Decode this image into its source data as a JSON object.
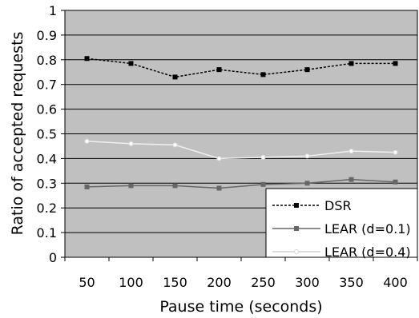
{
  "chart_data": {
    "type": "line",
    "title": "",
    "xlabel": "Pause time (seconds)",
    "ylabel": "Ratio of accepted requests",
    "x": [
      50,
      100,
      150,
      200,
      250,
      300,
      350,
      400
    ],
    "x_tick_labels": [
      "50",
      "100",
      "150",
      "200",
      "250",
      "300",
      "350",
      "400"
    ],
    "y_tick_labels": [
      "0",
      "0.1",
      "0.2",
      "0.3",
      "0.4",
      "0.5",
      "0.6",
      "0.7",
      "0.8",
      "0.9",
      "1"
    ],
    "ylim": [
      0,
      1
    ],
    "grid": "horizontal",
    "plot_background": "#C0C0C0",
    "legend_position": "bottom-right",
    "series": [
      {
        "name": "DSR",
        "values": [
          0.805,
          0.785,
          0.73,
          0.76,
          0.74,
          0.76,
          0.785,
          0.785
        ],
        "color": "#000000",
        "line_style": "dashed",
        "marker": "square-filled"
      },
      {
        "name": "LEAR (d=0.1)",
        "values": [
          0.285,
          0.29,
          0.29,
          0.28,
          0.295,
          0.3,
          0.315,
          0.305
        ],
        "color": "#666666",
        "line_style": "solid",
        "marker": "square-filled"
      },
      {
        "name": "LEAR (d=0.4)",
        "values": [
          0.47,
          0.46,
          0.455,
          0.4,
          0.405,
          0.41,
          0.43,
          0.425
        ],
        "color": "#f0f0f0",
        "line_style": "solid",
        "marker": "circle-open"
      }
    ]
  }
}
